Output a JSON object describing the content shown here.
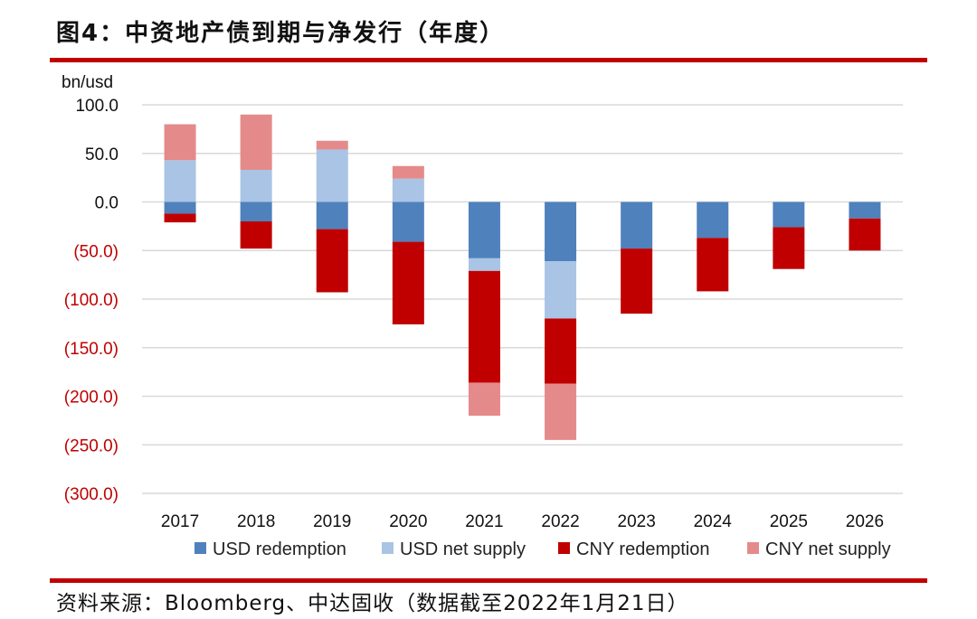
{
  "title": "图4：中资地产债到期与净发行（年度）",
  "source": "资料来源：Bloomberg、中达固收（数据截至2022年1月21日）",
  "colors": {
    "rule": "#c00000",
    "positive_tick": "#111111",
    "negative_tick": "#c00000",
    "grid": "#d9d9d9"
  },
  "chart_data": {
    "type": "bar",
    "stacked": true,
    "unit_label": "bn/usd",
    "ylim": [
      -300,
      100
    ],
    "yticks": [
      100,
      50,
      0,
      -50,
      -100,
      -150,
      -200,
      -250,
      -300
    ],
    "ytick_labels": [
      "100.0",
      "50.0",
      "0.0",
      "(50.0)",
      "(100.0)",
      "(150.0)",
      "(200.0)",
      "(250.0)",
      "(300.0)"
    ],
    "grid": true,
    "legend_position": "bottom",
    "categories": [
      "2017",
      "2018",
      "2019",
      "2020",
      "2021",
      "2022",
      "2023",
      "2024",
      "2025",
      "2026"
    ],
    "series": [
      {
        "name": "USD redemption",
        "color": "#4f81bd",
        "values": [
          -12,
          -20,
          -28,
          -41,
          -58,
          -61,
          -48,
          -37,
          -26,
          -17
        ]
      },
      {
        "name": "USD net supply",
        "color": "#a9c4e4",
        "values": [
          43,
          33,
          54,
          24,
          -13,
          -59,
          0,
          0,
          0,
          0
        ]
      },
      {
        "name": "CNY redemption",
        "color": "#c00000",
        "values": [
          -9,
          -28,
          -65,
          -85,
          -115,
          -67,
          -67,
          -55,
          -43,
          -33
        ]
      },
      {
        "name": "CNY net supply",
        "color": "#e58a8a",
        "values": [
          37,
          57,
          9,
          13,
          -34,
          -58,
          0,
          0,
          0,
          0
        ]
      }
    ]
  }
}
